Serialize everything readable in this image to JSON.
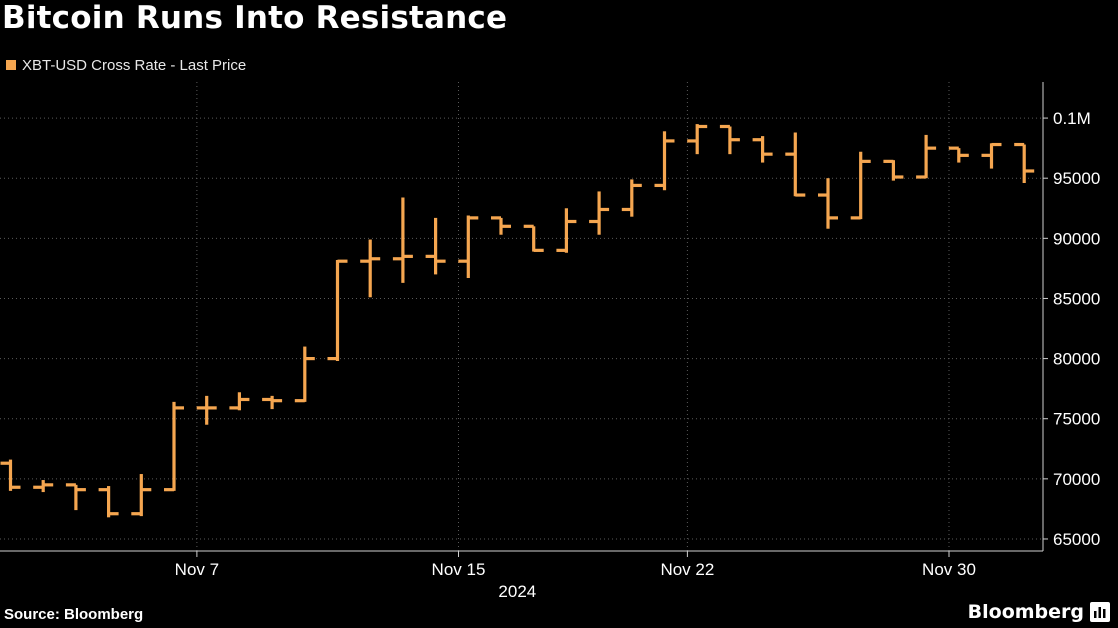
{
  "chart_data": {
    "type": "ohlc",
    "title": "Bitcoin Runs Into Resistance",
    "series_name": "XBT-USD Cross Rate - Last Price",
    "color": "#f5a650",
    "grid": true,
    "ylim": [
      64000,
      103000
    ],
    "y_ticks": [
      65000,
      70000,
      75000,
      80000,
      85000,
      90000,
      95000,
      100000
    ],
    "y_tick_labels": [
      "65000",
      "70000",
      "75000",
      "80000",
      "85000",
      "90000",
      "95000",
      "0.1M"
    ],
    "x_ticks": [
      {
        "index": 5.7,
        "label": "Nov 7"
      },
      {
        "index": 13.7,
        "label": "Nov 15"
      },
      {
        "index": 20.7,
        "label": "Nov 22"
      },
      {
        "index": 28.7,
        "label": "Nov 30"
      }
    ],
    "x_axis_year": "2024",
    "candles": [
      {
        "open": 71300,
        "high": 71600,
        "low": 69000,
        "close": 69300
      },
      {
        "open": 69300,
        "high": 69900,
        "low": 68900,
        "close": 69500
      },
      {
        "open": 69500,
        "high": 69500,
        "low": 67400,
        "close": 69100
      },
      {
        "open": 69100,
        "high": 69400,
        "low": 66800,
        "close": 67100
      },
      {
        "open": 67100,
        "high": 70400,
        "low": 66900,
        "close": 69100
      },
      {
        "open": 69100,
        "high": 76400,
        "low": 69000,
        "close": 75900
      },
      {
        "open": 75900,
        "high": 76900,
        "low": 74500,
        "close": 75900
      },
      {
        "open": 75900,
        "high": 77200,
        "low": 75700,
        "close": 76600
      },
      {
        "open": 76600,
        "high": 76900,
        "low": 75800,
        "close": 76500
      },
      {
        "open": 76500,
        "high": 81000,
        "low": 76400,
        "close": 80000
      },
      {
        "open": 80000,
        "high": 88200,
        "low": 79800,
        "close": 88100
      },
      {
        "open": 88100,
        "high": 89900,
        "low": 85100,
        "close": 88300
      },
      {
        "open": 88300,
        "high": 93400,
        "low": 86300,
        "close": 88500
      },
      {
        "open": 88500,
        "high": 91700,
        "low": 87000,
        "close": 88100
      },
      {
        "open": 88100,
        "high": 91900,
        "low": 86700,
        "close": 91700
      },
      {
        "open": 91700,
        "high": 91700,
        "low": 90300,
        "close": 91000
      },
      {
        "open": 91000,
        "high": 91000,
        "low": 88900,
        "close": 89000
      },
      {
        "open": 89000,
        "high": 92500,
        "low": 88800,
        "close": 91400
      },
      {
        "open": 91400,
        "high": 93900,
        "low": 90300,
        "close": 92400
      },
      {
        "open": 92400,
        "high": 94900,
        "low": 91800,
        "close": 94400
      },
      {
        "open": 94400,
        "high": 98900,
        "low": 94000,
        "close": 98100
      },
      {
        "open": 98100,
        "high": 99500,
        "low": 97000,
        "close": 99300
      },
      {
        "open": 99300,
        "high": 99300,
        "low": 97000,
        "close": 98200
      },
      {
        "open": 98200,
        "high": 98500,
        "low": 96300,
        "close": 97000
      },
      {
        "open": 97000,
        "high": 98800,
        "low": 93500,
        "close": 93600
      },
      {
        "open": 93600,
        "high": 95000,
        "low": 90800,
        "close": 91700
      },
      {
        "open": 91700,
        "high": 97200,
        "low": 91600,
        "close": 96400
      },
      {
        "open": 96400,
        "high": 96500,
        "low": 94800,
        "close": 95100
      },
      {
        "open": 95100,
        "high": 98600,
        "low": 95000,
        "close": 97500
      },
      {
        "open": 97500,
        "high": 97500,
        "low": 96300,
        "close": 96900
      },
      {
        "open": 96900,
        "high": 97900,
        "low": 95800,
        "close": 97800
      },
      {
        "open": 97800,
        "high": 97800,
        "low": 94600,
        "close": 95600
      }
    ]
  },
  "footer": {
    "source": "Source: Bloomberg",
    "brand": "Bloomberg"
  }
}
